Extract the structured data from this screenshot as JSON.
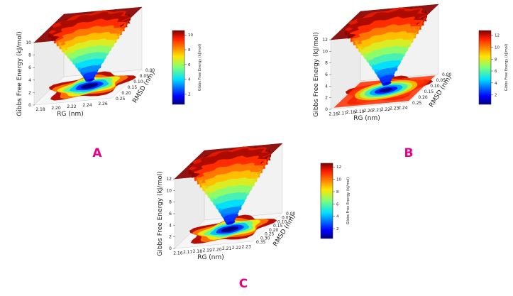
{
  "chart_data": [
    {
      "type": "surface",
      "panel_label": "A",
      "xlabel": "RG (nm)",
      "ylabel": "RMSD (nm)",
      "zlabel": "Gibbs Free Energy (kJ/mol)",
      "x_ticks": [
        "2.18",
        "2.20",
        "2.22",
        "2.24",
        "2.26"
      ],
      "y_ticks": [
        "0.00",
        "0.05",
        "0.10",
        "0.15",
        "0.20",
        "0.25"
      ],
      "z_ticks": [
        "0",
        "2",
        "4",
        "6",
        "8",
        "10"
      ],
      "zlim": [
        0,
        10
      ],
      "colorbar": {
        "label": "Gibbs Free Energy (kJ/mol)",
        "ticks": [
          "2",
          "4",
          "6",
          "8",
          "10"
        ],
        "min": 0.6,
        "max": 10.6,
        "colormap": "jet"
      }
    },
    {
      "type": "surface",
      "panel_label": "B",
      "xlabel": "RG (nm)",
      "ylabel": "RMSD (nm)",
      "zlabel": "Gibbs Free Energy (kJ/mol)",
      "x_ticks": [
        "2.16",
        "2.17",
        "2.18",
        "2.19",
        "2.20",
        "2.21",
        "2.22",
        "2.23",
        "2.24"
      ],
      "y_ticks": [
        "0.00",
        "0.05",
        "0.10",
        "0.15",
        "0.20",
        "0.25"
      ],
      "z_ticks": [
        "0",
        "2",
        "4",
        "6",
        "8",
        "10",
        "12"
      ],
      "zlim": [
        0,
        12
      ],
      "colorbar": {
        "label": "Gibbs Free Energy (kJ/mol)",
        "ticks": [
          "2",
          "4",
          "6",
          "8",
          "10",
          "12"
        ],
        "min": 0.4,
        "max": 12.8,
        "colormap": "jet"
      }
    },
    {
      "type": "surface",
      "panel_label": "C",
      "xlabel": "RG (nm)",
      "ylabel": "RMSD (nm)",
      "zlabel": "Gibbs Free Energy (kJ/mol)",
      "x_ticks": [
        "2.16",
        "2.17",
        "2.18",
        "2.19",
        "2.20",
        "2.21",
        "2.22",
        "2.23"
      ],
      "y_ticks": [
        "0.00",
        "0.05",
        "0.10",
        "0.15",
        "0.20",
        "0.25",
        "0.30",
        "0.35"
      ],
      "z_ticks": [
        "0",
        "2",
        "4",
        "6",
        "8",
        "10",
        "12"
      ],
      "zlim": [
        0,
        12
      ],
      "colorbar": {
        "label": "Gibbs Free Energy (kJ/mol)",
        "ticks": [
          "2",
          "4",
          "6",
          "8",
          "10",
          "12"
        ],
        "min": 0.4,
        "max": 12.6,
        "colormap": "jet"
      }
    }
  ],
  "colors": {
    "panel_letter": "#e6008a",
    "plateau": "#8b0000"
  }
}
